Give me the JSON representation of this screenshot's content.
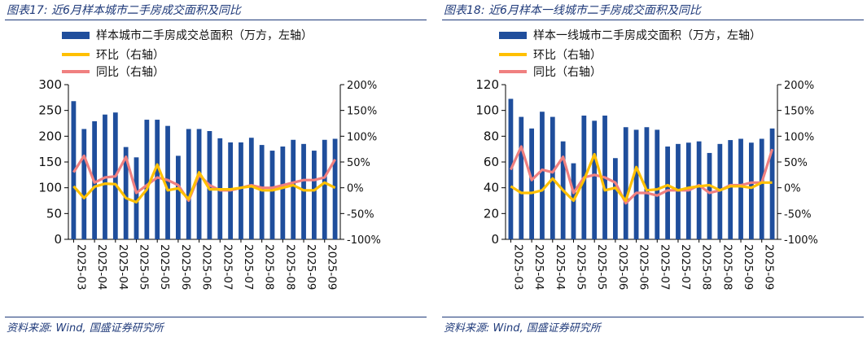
{
  "chart_data": [
    {
      "type": "bar+line",
      "title": "图表17:  近6月样本城市二手房成交面积及同比",
      "source": "资料来源: Wind, 国盛证券研究所",
      "legend": [
        "样本城市二手房成交总面积（万方，左轴）",
        "环比（右轴）",
        "同比（右轴）"
      ],
      "x_tick_labels": [
        "2025-03",
        "2025-04",
        "2025-04",
        "2025-05",
        "2025-05",
        "2025-06",
        "2025-06",
        "2025-07",
        "2025-07",
        "2025-08",
        "2025-08",
        "2025-09",
        "2025-09"
      ],
      "y_left": {
        "min": 0,
        "max": 300,
        "ticks": [
          "0",
          "50",
          "100",
          "150",
          "200",
          "250",
          "300"
        ]
      },
      "y_right": {
        "min": -100,
        "max": 200,
        "ticks": [
          "-100%",
          "-50%",
          "0%",
          "50%",
          "100%",
          "150%",
          "200%"
        ]
      },
      "bar_values": [
        268,
        214,
        229,
        242,
        246,
        179,
        159,
        232,
        232,
        220,
        162,
        214,
        214,
        210,
        196,
        188,
        188,
        197,
        183,
        172,
        180,
        193,
        185,
        172,
        193,
        195
      ],
      "mom_values": [
        3,
        -20,
        2,
        8,
        7,
        -20,
        -28,
        -3,
        45,
        -5,
        -1,
        -22,
        30,
        -3,
        -3,
        -3,
        0,
        3,
        -5,
        -5,
        0,
        5,
        -5,
        -5,
        10,
        0
      ],
      "yoy_values": [
        30,
        62,
        10,
        20,
        22,
        60,
        -10,
        5,
        20,
        15,
        5,
        -25,
        25,
        5,
        -5,
        -5,
        0,
        5,
        0,
        0,
        5,
        10,
        15,
        15,
        20,
        55
      ],
      "colors": {
        "bar": "#1f4e9c",
        "mom": "#ffc000",
        "yoy": "#f08080"
      }
    },
    {
      "type": "bar+line",
      "title": "图表18:  近6月样本一线城市二手房成交面积及同比",
      "source": "资料来源: Wind, 国盛证券研究所",
      "legend": [
        "样本一线城市二手房成交面积（万方，左轴）",
        "环比（右轴）",
        "同比（右轴）"
      ],
      "x_tick_labels": [
        "2025-03",
        "2025-04",
        "2025-04",
        "2025-05",
        "2025-05",
        "2025-06",
        "2025-06",
        "2025-07",
        "2025-07",
        "2025-08",
        "2025-08",
        "2025-09",
        "2025-09"
      ],
      "y_left": {
        "min": 0,
        "max": 120,
        "ticks": [
          "0",
          "20",
          "40",
          "60",
          "80",
          "100",
          "120"
        ]
      },
      "y_right": {
        "min": -100,
        "max": 200,
        "ticks": [
          "-100%",
          "-50%",
          "0%",
          "50%",
          "100%",
          "150%",
          "200%"
        ]
      },
      "bar_values": [
        109,
        95,
        86,
        99,
        95,
        76,
        59,
        96,
        92,
        96,
        63,
        87,
        85,
        87,
        85,
        72,
        74,
        75,
        76,
        67,
        74,
        77,
        78,
        75,
        78,
        86
      ],
      "mom_values": [
        3,
        -10,
        -10,
        -5,
        18,
        -5,
        -25,
        15,
        65,
        -5,
        0,
        -25,
        40,
        -5,
        -3,
        5,
        -5,
        0,
        3,
        5,
        -5,
        3,
        3,
        0,
        10,
        10
      ],
      "yoy_values": [
        35,
        80,
        15,
        35,
        30,
        60,
        -10,
        20,
        25,
        20,
        10,
        -30,
        -10,
        -10,
        -15,
        -5,
        -5,
        -5,
        5,
        -10,
        -5,
        5,
        5,
        10,
        10,
        75
      ],
      "colors": {
        "bar": "#1f4e9c",
        "mom": "#ffc000",
        "yoy": "#f08080"
      }
    }
  ]
}
